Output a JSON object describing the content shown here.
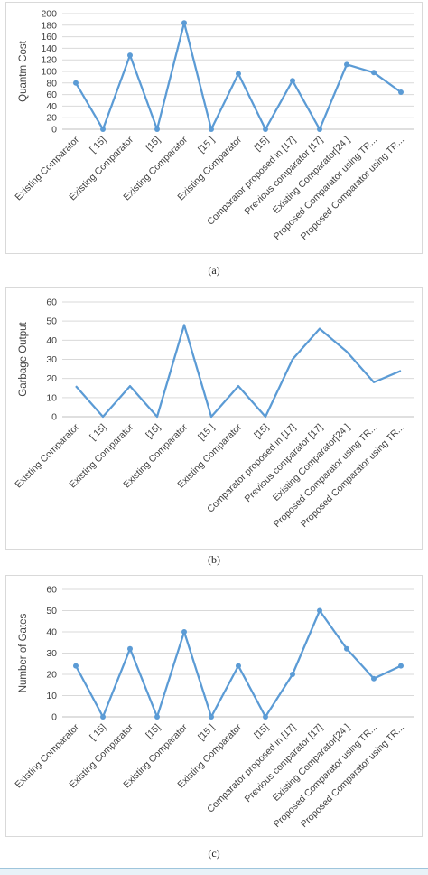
{
  "colors": {
    "line": "#5b9bd5",
    "grid": "#d9d9d9",
    "axis": "#bfbfbf",
    "text": "#404040"
  },
  "captions": [
    "(a)",
    "(b)",
    "(c)"
  ],
  "chart_data": [
    {
      "type": "line",
      "ylabel": "Quantm Cost",
      "ylim": [
        0,
        200
      ],
      "yticks": [
        0,
        20,
        40,
        60,
        80,
        100,
        120,
        140,
        160,
        180,
        200
      ],
      "categories": [
        "Existing Comparator",
        "[ 15]",
        "Existing Comparator",
        "[15]",
        "Existing Comparator",
        "[15 ]",
        "Existing Comparator",
        "[15]",
        "Comparator  proposed in [17]",
        "Previous comparator [17]",
        "Existing Comparator[24 ]",
        "Proposed Comparator using TR...",
        "Proposed Comparator using TR..."
      ],
      "values": [
        80,
        0,
        128,
        0,
        184,
        0,
        96,
        0,
        84,
        0,
        112,
        98,
        64
      ],
      "markers": [
        true,
        true,
        true,
        true,
        true,
        true,
        true,
        true,
        true,
        true,
        true,
        true,
        true
      ],
      "grid": true
    },
    {
      "type": "line",
      "ylabel": "Garbage Output",
      "ylim": [
        0,
        60
      ],
      "yticks": [
        0,
        10,
        20,
        30,
        40,
        50,
        60
      ],
      "categories": [
        "Existing Comparator",
        "[ 15]",
        "Existing Comparator",
        "[15]",
        "Existing Comparator",
        "[15 ]",
        "Existing Comparator",
        "[15]",
        "Comparator  proposed in [17]",
        "Previous comparator [17]",
        "Existing Comparator[24 ]",
        "Proposed Comparator using TR...",
        "Proposed Comparator using TR..."
      ],
      "values": [
        16,
        0,
        16,
        0,
        48,
        0,
        16,
        0,
        30,
        46,
        34,
        18,
        24
      ],
      "markers": [
        false,
        false,
        false,
        false,
        false,
        false,
        false,
        false,
        false,
        false,
        false,
        false,
        false
      ],
      "grid": true
    },
    {
      "type": "line",
      "ylabel": "Number of Gates",
      "ylim": [
        0,
        60
      ],
      "yticks": [
        0,
        10,
        20,
        30,
        40,
        50,
        60
      ],
      "categories": [
        "Existing Comparator",
        "[ 15]",
        "Existing Comparator",
        "[15]",
        "Existing Comparator",
        "[15 ]",
        "Existing Comparator",
        "[15]",
        "Comparator  proposed in [17]",
        "Previous comparator [17]",
        "Existing Comparator[24 ]",
        "Proposed Comparator using TR...",
        "Proposed Comparator using TR..."
      ],
      "values": [
        24,
        0,
        32,
        0,
        40,
        0,
        24,
        0,
        20,
        50,
        32,
        18,
        24
      ],
      "markers": [
        true,
        true,
        true,
        true,
        true,
        true,
        true,
        true,
        true,
        true,
        true,
        true,
        true
      ],
      "grid": true
    }
  ]
}
